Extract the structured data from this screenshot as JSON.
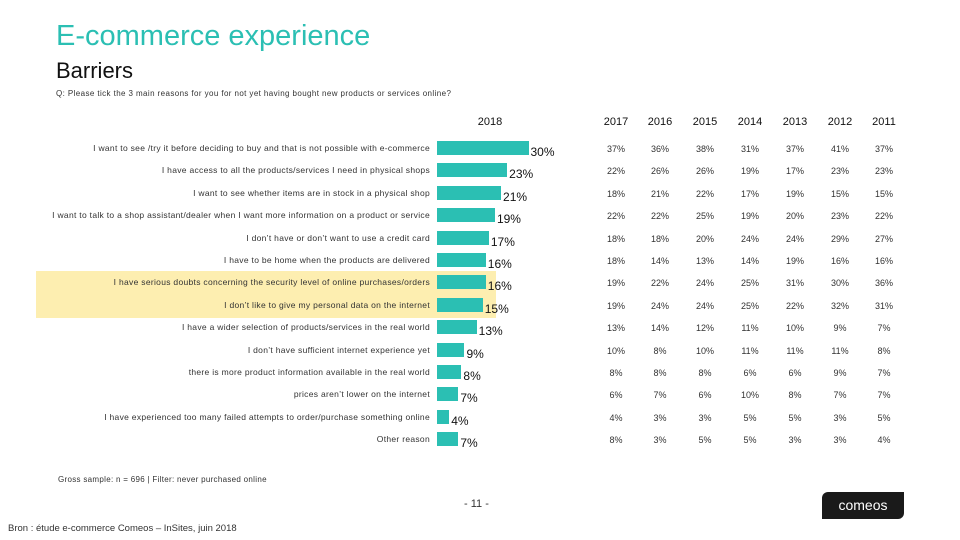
{
  "header": {
    "title": "E-commerce experience",
    "subtitle": "Barriers",
    "question": "Q: Please tick the 3 main reasons for you for not yet having bought new products or services online?"
  },
  "chart_data": {
    "type": "bar",
    "orientation": "horizontal",
    "current_year": "2018",
    "value_suffix": "%",
    "highlight_rows": [
      6,
      7
    ],
    "highlight_color": "#fdeeb0",
    "bar_color": "#2bbfb3",
    "categories": [
      "I want to see /try it before deciding to buy and that is not possible with e-commerce",
      "I have access to all the products/services I need in physical shops",
      "I want to see whether items are in stock in a physical shop",
      "I want to talk to a shop assistant/dealer when I want more information on a product or service",
      "I don’t have or don’t want to use a credit card",
      "I have to be home when the products are delivered",
      "I have serious doubts concerning the security level of online purchases/orders",
      "I don’t like to give my personal data on the internet",
      "I have a wider selection of products/services in the real world",
      "I don’t have sufficient internet experience yet",
      "there is more product information available in the real world",
      "prices aren’t lower on the internet",
      "I have experienced too many failed attempts to order/purchase something online",
      "Other reason"
    ],
    "values": [
      30,
      23,
      21,
      19,
      17,
      16,
      16,
      15,
      13,
      9,
      8,
      7,
      4,
      7
    ],
    "value_labels": [
      "30%",
      "23%",
      "21%",
      "19%",
      "17%",
      "16%",
      "16%",
      "15%",
      "13%",
      "9%",
      "8%",
      "7%",
      "4%",
      "7%"
    ],
    "history_years": [
      "2017",
      "2016",
      "2015",
      "2014",
      "2013",
      "2012",
      "2011"
    ],
    "history": [
      [
        "37%",
        "36%",
        "38%",
        "31%",
        "37%",
        "41%",
        "37%"
      ],
      [
        "22%",
        "26%",
        "26%",
        "19%",
        "17%",
        "23%",
        "23%"
      ],
      [
        "18%",
        "21%",
        "22%",
        "17%",
        "19%",
        "15%",
        "15%"
      ],
      [
        "22%",
        "22%",
        "25%",
        "19%",
        "20%",
        "23%",
        "22%"
      ],
      [
        "18%",
        "18%",
        "20%",
        "24%",
        "24%",
        "29%",
        "27%"
      ],
      [
        "18%",
        "14%",
        "13%",
        "14%",
        "19%",
        "16%",
        "16%"
      ],
      [
        "19%",
        "22%",
        "24%",
        "25%",
        "31%",
        "30%",
        "36%"
      ],
      [
        "19%",
        "24%",
        "24%",
        "25%",
        "22%",
        "32%",
        "31%"
      ],
      [
        "13%",
        "14%",
        "12%",
        "11%",
        "10%",
        "9%",
        "7%"
      ],
      [
        "10%",
        "8%",
        "10%",
        "11%",
        "11%",
        "11%",
        "8%"
      ],
      [
        "8%",
        "8%",
        "8%",
        "6%",
        "6%",
        "9%",
        "7%"
      ],
      [
        "6%",
        "7%",
        "6%",
        "10%",
        "8%",
        "7%",
        "7%"
      ],
      [
        "4%",
        "3%",
        "3%",
        "5%",
        "5%",
        "3%",
        "5%"
      ],
      [
        "8%",
        "3%",
        "5%",
        "5%",
        "3%",
        "3%",
        "4%"
      ]
    ]
  },
  "footer": {
    "base_note": "Gross sample: n = 696 | Filter: never purchased online",
    "page_number": "- 11 -",
    "source": "Bron : étude e-commerce Comeos – InSites, juin 2018",
    "logo_text": "comeos"
  }
}
